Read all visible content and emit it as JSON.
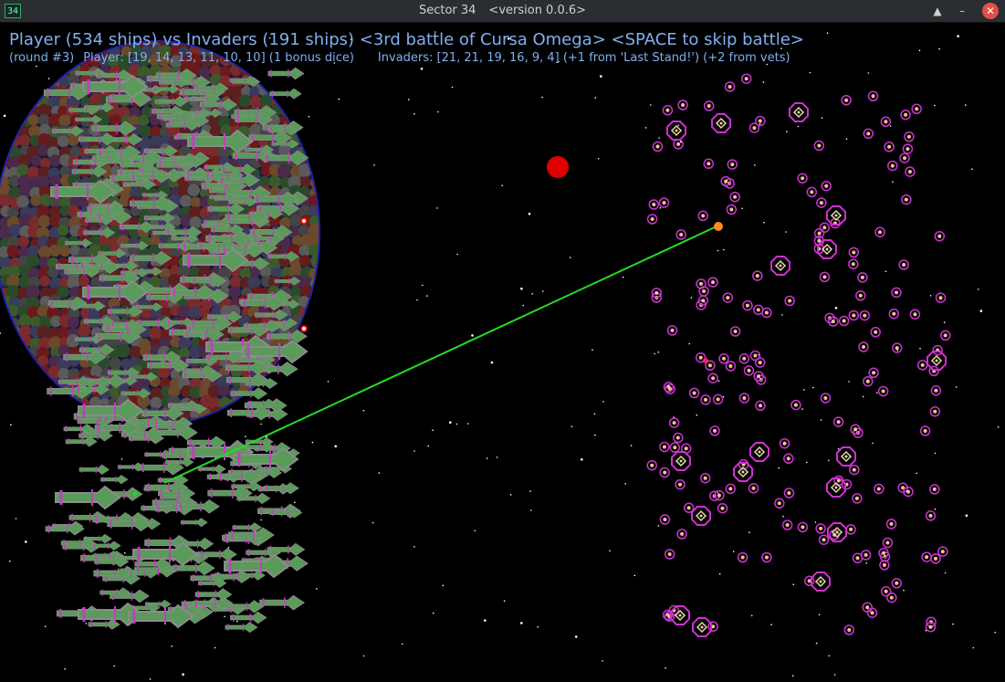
{
  "window": {
    "app_icon": "34",
    "title": "Sector 34",
    "version": "<version 0.0.6>",
    "shade_icon": "up-triangle-icon",
    "minimize_icon": "minimize-icon",
    "close_icon": "close-icon"
  },
  "hud": {
    "headline": "Player (534 ships) vs Invaders (191 ships) <3rd battle of Cursa Omega> <SPACE to skip battle>",
    "round": "(round #3)",
    "player_dice": "Player: [19, 14, 13, 11, 10, 10] (1 bonus dice)",
    "invader_dice": "Invaders: [21, 21, 19, 16, 9, 4] (+1 from 'Last Stand!') (+2 from vets)"
  },
  "colors": {
    "hud_text": "#7fb0f0",
    "player_ship": "#5a9a5a",
    "player_outline": "#c040c0",
    "invader_ring": "#d030d0",
    "laser": "#22dd22",
    "sun": "#e00000"
  }
}
